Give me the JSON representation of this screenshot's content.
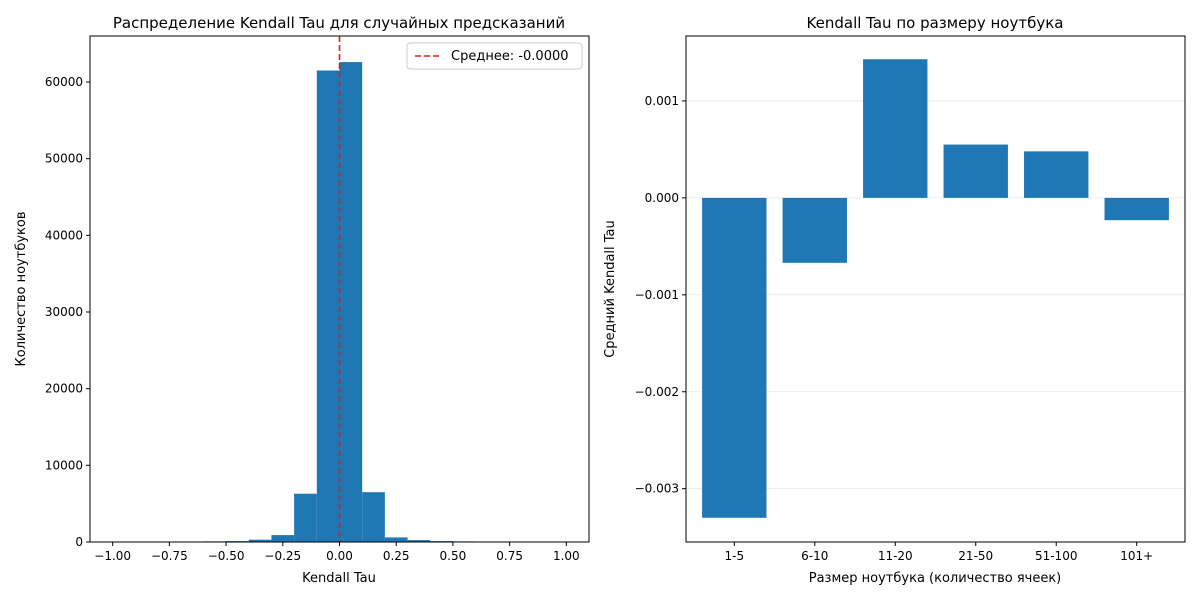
{
  "chart_data": [
    {
      "type": "histogram",
      "title": "Распределение Kendall Tau для случайных предсказаний",
      "xlabel": "Kendall Tau",
      "ylabel": "Количество ноутбуков",
      "xlim": [
        -1.1,
        1.1
      ],
      "ylim": [
        0,
        66000
      ],
      "xticks": [
        -1.0,
        -0.75,
        -0.5,
        -0.25,
        0.0,
        0.25,
        0.5,
        0.75,
        1.0
      ],
      "xtick_labels": [
        "−1.00",
        "−0.75",
        "−0.50",
        "−0.25",
        "0.00",
        "0.25",
        "0.50",
        "0.75",
        "1.00"
      ],
      "yticks": [
        0,
        10000,
        20000,
        30000,
        40000,
        50000,
        60000
      ],
      "ytick_labels": [
        "0",
        "10000",
        "20000",
        "30000",
        "40000",
        "50000",
        "60000"
      ],
      "bin_width": 0.1,
      "bins": [
        {
          "x0": -1.0,
          "x1": -0.9,
          "count": 10
        },
        {
          "x0": -0.9,
          "x1": -0.8,
          "count": 15
        },
        {
          "x0": -0.8,
          "x1": -0.7,
          "count": 20
        },
        {
          "x0": -0.7,
          "x1": -0.6,
          "count": 30
        },
        {
          "x0": -0.6,
          "x1": -0.5,
          "count": 80
        },
        {
          "x0": -0.5,
          "x1": -0.4,
          "count": 120
        },
        {
          "x0": -0.4,
          "x1": -0.3,
          "count": 300
        },
        {
          "x0": -0.3,
          "x1": -0.2,
          "count": 900
        },
        {
          "x0": -0.2,
          "x1": -0.1,
          "count": 6300
        },
        {
          "x0": -0.1,
          "x1": 0.0,
          "count": 61500
        },
        {
          "x0": 0.0,
          "x1": 0.1,
          "count": 62600
        },
        {
          "x0": 0.1,
          "x1": 0.2,
          "count": 6500
        },
        {
          "x0": 0.2,
          "x1": 0.3,
          "count": 600
        },
        {
          "x0": 0.3,
          "x1": 0.4,
          "count": 250
        },
        {
          "x0": 0.4,
          "x1": 0.5,
          "count": 120
        },
        {
          "x0": 0.5,
          "x1": 0.6,
          "count": 80
        },
        {
          "x0": 0.6,
          "x1": 0.7,
          "count": 30
        },
        {
          "x0": 0.7,
          "x1": 0.8,
          "count": 20
        },
        {
          "x0": 0.8,
          "x1": 0.9,
          "count": 15
        },
        {
          "x0": 0.9,
          "x1": 1.0,
          "count": 10
        }
      ],
      "bar_color": "#1f77b4",
      "mean_line": {
        "x": 0.0,
        "color": "#e41a1c",
        "style": "dashed"
      },
      "legend": {
        "placement": "top-right",
        "entries": [
          "Среднее: -0.0000"
        ]
      },
      "grid": false
    },
    {
      "type": "bar",
      "title": "Kendall Tau по размеру ноутбука",
      "xlabel": "Размер ноутбука (количество ячеек)",
      "ylabel": "Средний Kendall Tau",
      "categories": [
        "1-5",
        "6-10",
        "11-20",
        "21-50",
        "51-100",
        "101+"
      ],
      "values": [
        -0.0033,
        -0.00067,
        0.00143,
        0.00055,
        0.00048,
        -0.00023
      ],
      "ylim": [
        -0.00355,
        0.00167
      ],
      "yticks": [
        -0.003,
        -0.002,
        -0.001,
        0.0,
        0.001
      ],
      "ytick_labels": [
        "−0.003",
        "−0.002",
        "−0.001",
        "0.000",
        "0.001"
      ],
      "bar_color": "#1f77b4",
      "grid": true
    }
  ]
}
